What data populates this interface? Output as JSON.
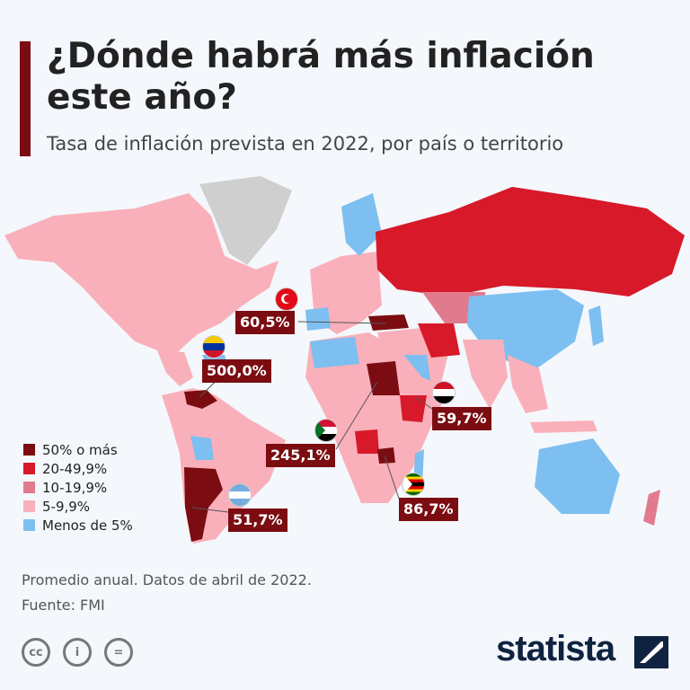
{
  "header": {
    "title": "¿Dónde habrá más inflación este año?",
    "subtitle": "Tasa de inflación prevista en 2022, por país o territorio"
  },
  "legend": [
    {
      "label": "50% o más",
      "color": "#7b0d12"
    },
    {
      "label": "20-49,9%",
      "color": "#d7192a"
    },
    {
      "label": "10-19,9%",
      "color": "#e27a8e"
    },
    {
      "label": "5-9,9%",
      "color": "#f9b0ba"
    },
    {
      "label": "Menos de 5%",
      "color": "#7dbff0"
    }
  ],
  "no_data_color": "#cfcfcf",
  "callouts": [
    {
      "country": "Turquía",
      "value": "60,5%",
      "flag": "turkey-flag"
    },
    {
      "country": "Venezuela",
      "value": "500,0%",
      "flag": "venezuela-flag"
    },
    {
      "country": "Sudán",
      "value": "245,1%",
      "flag": "sudan-flag"
    },
    {
      "country": "Argentina",
      "value": "51,7%",
      "flag": "argentina-flag"
    },
    {
      "country": "Yemen",
      "value": "59,7%",
      "flag": "yemen-flag"
    },
    {
      "country": "Zimbabue",
      "value": "86,7%",
      "flag": "zimbabwe-flag"
    }
  ],
  "footer": {
    "note": "Promedio anual. Datos de abril de 2022.",
    "source": "Fuente: FMI",
    "brand": "statista"
  }
}
